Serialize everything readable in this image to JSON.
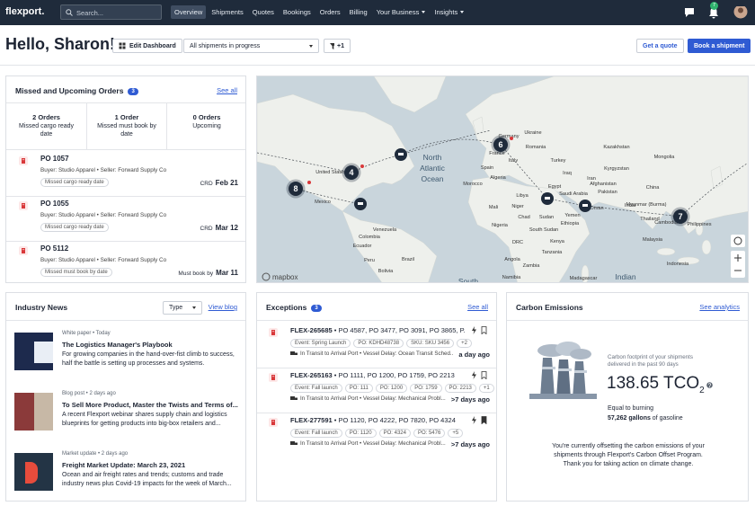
{
  "nav": {
    "logo": "flexport.",
    "search": "Search...",
    "items": [
      "Overview",
      "Shipments",
      "Quotes",
      "Bookings",
      "Orders",
      "Billing",
      "Your Business",
      "Insights"
    ],
    "notifications": "7"
  },
  "header": {
    "greeting": "Hello, Sharon!",
    "edit": "Edit Dashboard",
    "filter": "All shipments in progress",
    "filter_count": "+1",
    "quote": "Get a quote",
    "book": "Book a shipment"
  },
  "orders": {
    "title": "Missed and Upcoming Orders",
    "count": "3",
    "see_all": "See all",
    "summary": [
      {
        "count": "2 Orders",
        "label": "Missed cargo ready date"
      },
      {
        "count": "1 Order",
        "label": "Missed must book by date"
      },
      {
        "count": "0 Orders",
        "label": "Upcoming"
      }
    ],
    "items": [
      {
        "po": "PO 1057",
        "parties": "Buyer: Studio Apparel • Seller: Forward Supply Co",
        "tag": "Missed cargo ready date",
        "date_label": "CRD",
        "date": "Feb 21"
      },
      {
        "po": "PO 1055",
        "parties": "Buyer: Studio Apparel • Seller: Forward Supply Co",
        "tag": "Missed cargo ready date",
        "date_label": "CRD",
        "date": "Mar 12"
      },
      {
        "po": "PO 5112",
        "parties": "Buyer: Studio Apparel • Seller: Forward Supply Co",
        "tag": "Missed must book by date",
        "date_label": "Must book by",
        "date": "Mar 11"
      }
    ]
  },
  "map": {
    "labels": [
      "North",
      "Atlantic",
      "Ocean",
      "United States",
      "Mexico",
      "Venezuela",
      "Colombia",
      "Ecuador",
      "Peru",
      "Brazil",
      "Bolivia",
      "Morocco",
      "Algeria",
      "Libya",
      "Egypt",
      "Mali",
      "Niger",
      "Chad",
      "Nigeria",
      "Sudan",
      "South Sudan",
      "Ethiopia",
      "DRC",
      "Kenya",
      "Tanzania",
      "Angola",
      "Zambia",
      "Namibia",
      "Madagascar",
      "France",
      "Spain",
      "Italy",
      "Germany",
      "Ukraine",
      "Romania",
      "Turkey",
      "Iraq",
      "Iran",
      "Saudi Arabia",
      "Yemen",
      "Oman",
      "Kazakhstan",
      "Kyrgyzstan",
      "Afghanistan",
      "Pakistan",
      "India",
      "Mongolia",
      "China",
      "Myanmar (Burma)",
      "Thailand",
      "Cambodia",
      "Philippines",
      "Malaysia",
      "Indonesia",
      "Indian",
      "South"
    ],
    "clusters": [
      "4",
      "6",
      "7",
      "8"
    ],
    "attribution": "mapbox"
  },
  "news": {
    "title": "Industry News",
    "type": "Type",
    "view": "View blog",
    "items": [
      {
        "meta": "White paper • Today",
        "title": "The Logistics Manager's Playbook",
        "body": "For growing companies in the hand-over-fist climb to success, half the battle is setting up processes and systems."
      },
      {
        "meta": "Blog post • 2 days ago",
        "title": "To Sell More Product, Master the Twists and Terms of...",
        "body": "A recent Flexport webinar shares supply chain and logistics blueprints for getting products into big-box retailers and..."
      },
      {
        "meta": "Market update • 2 days ago",
        "title": "Freight Market Update: March 23, 2021",
        "body": "Ocean and air freight rates and trends; customs and trade industry news plus Covid-19 impacts for the week of March..."
      }
    ]
  },
  "exceptions": {
    "title": "Exceptions",
    "count": "3",
    "see_all": "See all",
    "items": [
      {
        "id": "FLEX-265685",
        "pos": " • PO 4587, PO 3477, PO 3091, PO 3865, P...",
        "tags": [
          "Event: Spring Launch",
          "PO: KDHD48738",
          "SKU: SKU 3456",
          "+2"
        ],
        "status": "In Transit to Arrival Port • Vessel Delay: Ocean Transit Sched...",
        "age": "a day ago"
      },
      {
        "id": "FLEX-265163",
        "pos": " • PO 1111, PO 1200, PO 1759, PO 2213",
        "tags": [
          "Event: Fall launch",
          "PO: 111",
          "PO: 1200",
          "PO: 1759",
          "PO: 2213",
          "+1"
        ],
        "status": "In Transit to Arrival Port • Vessel Delay: Mechanical Probl...",
        "age": ">7 days ago"
      },
      {
        "id": "FLEX-277591",
        "pos": " • PO 1120, PO 4222, PO 7820, PO 4324",
        "tags": [
          "Event: Fall launch",
          "PO: 1120",
          "PO: 4324",
          "PO: 5476",
          "+5"
        ],
        "status": "In Transit to Arrival Port • Vessel Delay: Mechanical Probl...",
        "age": ">7 days ago"
      }
    ]
  },
  "carbon": {
    "title": "Carbon Emissions",
    "see": "See analytics",
    "caption": "Carbon footprint of your shipments delivered in the past 90 days",
    "value": "138.65 TCO",
    "sub": "2",
    "equal": "Equal to burning",
    "gallons": "57,262 gallons",
    "of": " of gasoline",
    "offset": "You're currently offsetting the carbon emissions of your shipments through Flexport's Carbon Offset Program. Thank you for taking action on climate change."
  }
}
